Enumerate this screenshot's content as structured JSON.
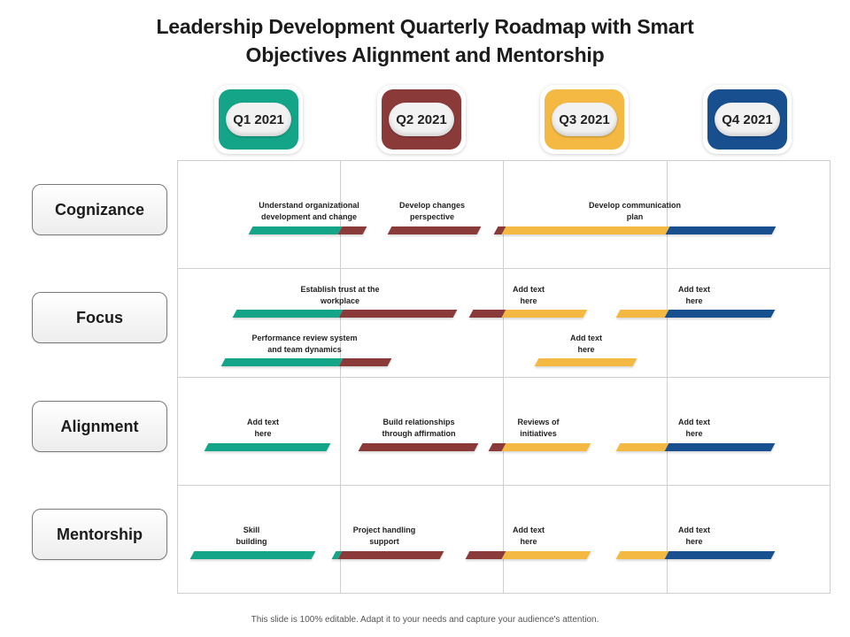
{
  "title": {
    "line1": "Leadership Development Quarterly Roadmap with Smart",
    "line2": "Objectives Alignment and Mentorship"
  },
  "colors": {
    "q1": "#14a589",
    "q2": "#8b3a3a",
    "q3": "#f4b942",
    "q4": "#184f8f"
  },
  "quarters": [
    {
      "label": "Q1 2021",
      "color": "#14a589"
    },
    {
      "label": "Q2 2021",
      "color": "#8b3a3a"
    },
    {
      "label": "Q3 2021",
      "color": "#f4b942"
    },
    {
      "label": "Q4 2021",
      "color": "#184f8f"
    }
  ],
  "rows": [
    {
      "label": "Cognizance"
    },
    {
      "label": "Focus"
    },
    {
      "label": "Alignment"
    },
    {
      "label": "Mentorship"
    }
  ],
  "tasks": [
    {
      "row": "Cognizance",
      "text": "Understand organizational\ndevelopment and change",
      "start_quarter": 1.45,
      "end_quarter": 2.15
    },
    {
      "row": "Cognizance",
      "text": "Develop changes\nperspective",
      "start_quarter": 2.3,
      "end_quarter": 2.85
    },
    {
      "row": "Cognizance",
      "text": "Develop  communication\nplan",
      "start_quarter": 2.95,
      "end_quarter": 4.65
    },
    {
      "row": "Focus",
      "text": "Establish trust at the\nworkplace",
      "start_quarter": 1.35,
      "end_quarter": 2.7
    },
    {
      "row": "Focus",
      "text": "Add text\nhere",
      "start_quarter": 2.8,
      "end_quarter": 3.5
    },
    {
      "row": "Focus",
      "text": "Add text\nhere",
      "start_quarter": 3.7,
      "end_quarter": 4.65
    },
    {
      "row": "Focus",
      "text": "Performance review system\nand team dynamics",
      "start_quarter": 1.28,
      "end_quarter": 2.3
    },
    {
      "row": "Focus",
      "text": "Add text\nhere",
      "start_quarter": 3.2,
      "end_quarter": 3.8
    },
    {
      "row": "Alignment",
      "text": "Add text\nhere",
      "start_quarter": 1.18,
      "end_quarter": 1.93
    },
    {
      "row": "Alignment",
      "text": "Build relationships\nthrough affirmation",
      "start_quarter": 2.12,
      "end_quarter": 2.83
    },
    {
      "row": "Alignment",
      "text": "Reviews of\ninitiatives",
      "start_quarter": 2.92,
      "end_quarter": 3.52
    },
    {
      "row": "Alignment",
      "text": "Add text\nhere",
      "start_quarter": 3.7,
      "end_quarter": 4.65
    },
    {
      "row": "Mentorship",
      "text": "Skill\nbuilding",
      "start_quarter": 1.09,
      "end_quarter": 1.83
    },
    {
      "row": "Mentorship",
      "text": "Project handling\nsupport",
      "start_quarter": 1.96,
      "end_quarter": 2.62
    },
    {
      "row": "Mentorship",
      "text": "Add text\nhere",
      "start_quarter": 2.78,
      "end_quarter": 3.52
    },
    {
      "row": "Mentorship",
      "text": "Add text\nhere",
      "start_quarter": 3.7,
      "end_quarter": 4.65
    }
  ],
  "footer": "This slide is 100% editable. Adapt it to your needs and capture your audience's attention."
}
